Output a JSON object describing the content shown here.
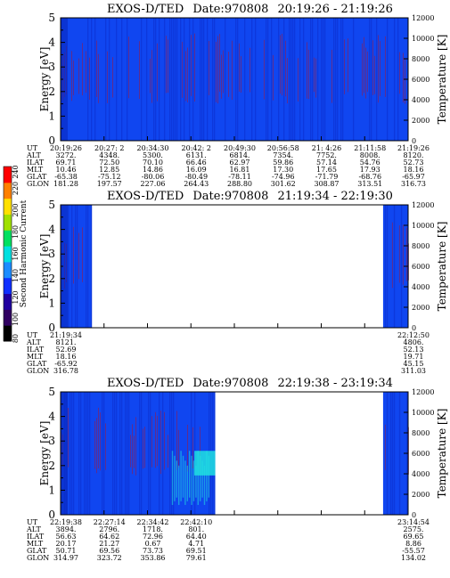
{
  "colors": {
    "background_blue": "#1046f0",
    "band_dark": "#0a2ac8",
    "streak_red": "#a0183c",
    "cyan": "#20e0e0"
  },
  "colorbar": {
    "label": "Second Harmonic Current",
    "ticks": [
      "80",
      "100",
      "120",
      "140",
      "160",
      "180",
      "200",
      "220",
      "240"
    ],
    "colors": [
      "#000000",
      "#300060",
      "#2000a0",
      "#1030ff",
      "#1c8cff",
      "#00e0e0",
      "#00e060",
      "#a0e000",
      "#ffe000",
      "#ff8000",
      "#ff0000"
    ]
  },
  "chart_data": [
    {
      "type": "heatmap",
      "title_prefix": "EXOS-D/TED",
      "date": "Date:970808",
      "time_range": "20:19:26 - 21:19:26",
      "ylabel": "Energy [eV]",
      "ylabel_right": "Temperature [K]",
      "ylim": [
        0,
        5
      ],
      "ylim_right": [
        0,
        12000
      ],
      "yticks": [
        "0",
        "1",
        "2",
        "3",
        "4",
        "5"
      ],
      "yticks_right": [
        "0",
        "2000",
        "4000",
        "6000",
        "8000",
        "10000",
        "12000"
      ],
      "data_coverage": [
        [
          0,
          1
        ]
      ],
      "orbit_labels": [
        "UT",
        "ALT",
        "ILAT",
        "MLT",
        "GLAT",
        "GLON"
      ],
      "orbit_table": [
        [
          "20:19:26",
          "3272.",
          "69.71",
          "10.46",
          "-65.38",
          "181.28"
        ],
        [
          "20:27: 2",
          "4348.",
          "72.50",
          "12.85",
          "-75.12",
          "197.57"
        ],
        [
          "20:34:30",
          "5300.",
          "70.10",
          "14.86",
          "-80.06",
          "227.06"
        ],
        [
          "20:42: 2",
          "6131.",
          "66.46",
          "16.09",
          "-80.49",
          "264.43"
        ],
        [
          "20:49:30",
          "6814.",
          "62.97",
          "16.81",
          "-78.11",
          "288.80"
        ],
        [
          "20:56:58",
          "7354.",
          "59.86",
          "17.30",
          "-74.96",
          "301.62"
        ],
        [
          "21: 4:26",
          "7752.",
          "57.14",
          "17.65",
          "-71.79",
          "308.87"
        ],
        [
          "21:11:58",
          "8008.",
          "54.76",
          "17.93",
          "-68.76",
          "313.51"
        ],
        [
          "21:19:26",
          "8120.",
          "52.73",
          "18.16",
          "-65.97",
          "316.73"
        ]
      ]
    },
    {
      "type": "heatmap",
      "title_prefix": "EXOS-D/TED",
      "date": "Date:970808",
      "time_range": "21:19:34 - 22:19:30",
      "ylabel": "Energy [eV]",
      "ylabel_right": "Temperature [K]",
      "ylim": [
        0,
        5
      ],
      "ylim_right": [
        0,
        12000
      ],
      "yticks": [
        "0",
        "1",
        "2",
        "3",
        "4",
        "5"
      ],
      "yticks_right": [
        "0",
        "2000",
        "4000",
        "6000",
        "8000",
        "10000",
        "12000"
      ],
      "data_coverage": [
        [
          0,
          0.09
        ],
        [
          0.928,
          1
        ]
      ],
      "orbit_labels": [
        "UT",
        "ALT",
        "ILAT",
        "MLT",
        "GLAT",
        "GLON"
      ],
      "orbit_table": [
        [
          "21:19:34",
          "8121.",
          "52.69",
          "18.16",
          "-65.92",
          "316.78"
        ],
        [
          "",
          "",
          "",
          "",
          "",
          ""
        ],
        [
          "",
          "",
          "",
          "",
          "",
          ""
        ],
        [
          "",
          "",
          "",
          "",
          "",
          ""
        ],
        [
          "",
          "",
          "",
          "",
          "",
          ""
        ],
        [
          "",
          "",
          "",
          "",
          "",
          ""
        ],
        [
          "",
          "",
          "",
          "",
          "",
          ""
        ],
        [
          "",
          "",
          "",
          "",
          "",
          ""
        ],
        [
          "22:12:50",
          "4806.",
          "52.13",
          "19.71",
          "45.15",
          "311.03"
        ]
      ]
    },
    {
      "type": "heatmap",
      "title_prefix": "EXOS-D/TED",
      "date": "Date:970808",
      "time_range": "22:19:38 - 23:19:34",
      "ylabel": "Energy [eV]",
      "ylabel_right": "Temperature [K]",
      "ylim": [
        0,
        5
      ],
      "ylim_right": [
        0,
        12000
      ],
      "yticks": [
        "0",
        "1",
        "2",
        "3",
        "4",
        "5"
      ],
      "yticks_right": [
        "0",
        "2000",
        "4000",
        "6000",
        "8000",
        "10000",
        "12000"
      ],
      "data_coverage": [
        [
          0,
          0.445
        ],
        [
          0.928,
          1
        ]
      ],
      "orbit_labels": [
        "UT",
        "ALT",
        "ILAT",
        "MLT",
        "GLAT",
        "GLON"
      ],
      "orbit_table": [
        [
          "22:19:38",
          "3894.",
          "56.63",
          "20.17",
          "50.71",
          "314.97"
        ],
        [
          "22:27:14",
          "2796.",
          "64.62",
          "21.27",
          "69.56",
          "323.72"
        ],
        [
          "22:34:42",
          "1718.",
          "72.96",
          "0.67",
          "73.73",
          "353.86"
        ],
        [
          "22:42:10",
          "801.",
          "64.40",
          "4.71",
          "69.51",
          "79.61"
        ],
        [
          "",
          "",
          "",
          "",
          "",
          ""
        ],
        [
          "",
          "",
          "",
          "",
          "",
          ""
        ],
        [
          "",
          "",
          "",
          "",
          "",
          ""
        ],
        [
          "",
          "",
          "",
          "",
          "",
          ""
        ],
        [
          "23:14:54",
          "2575.",
          "69.65",
          "8.86",
          "-55.57",
          "134.02"
        ]
      ]
    }
  ]
}
